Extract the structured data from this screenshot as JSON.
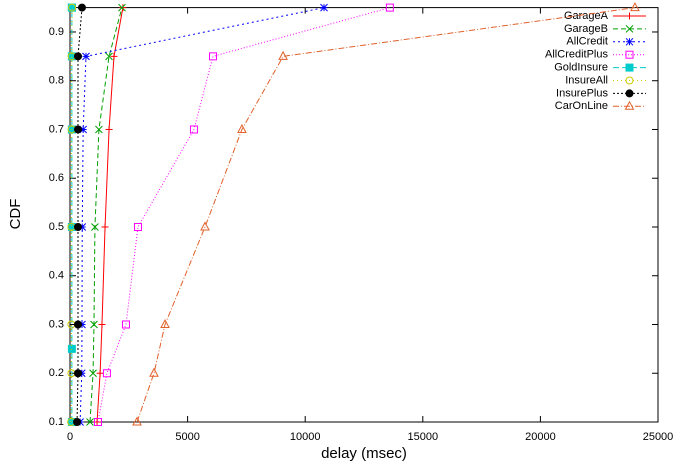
{
  "chart_data": {
    "type": "line",
    "xlabel": "delay (msec)",
    "ylabel": "CDF",
    "xlim": [
      0,
      25000
    ],
    "ylim": [
      0.1,
      0.95
    ],
    "xticks": [
      0,
      5000,
      10000,
      15000,
      20000,
      25000
    ],
    "yticks": [
      0.1,
      0.2,
      0.3,
      0.4,
      0.5,
      0.6,
      0.7,
      0.8,
      0.9
    ],
    "legend": "top-right",
    "series": [
      {
        "name": "GarageA",
        "color": "#ff0000",
        "marker": "plus",
        "dash": "none",
        "x": [
          1150,
          1280,
          1360,
          1490,
          1660,
          1870,
          2250
        ],
        "values": [
          0.1,
          0.2,
          0.3,
          0.5,
          0.7,
          0.85,
          0.95
        ]
      },
      {
        "name": "GarageB",
        "color": "#00a000",
        "marker": "cross",
        "dash": "5,3",
        "x": [
          850,
          980,
          1020,
          1060,
          1230,
          1660,
          2210
        ],
        "values": [
          0.1,
          0.2,
          0.3,
          0.5,
          0.7,
          0.85,
          0.95
        ]
      },
      {
        "name": "AllCredit",
        "color": "#0000ff",
        "marker": "star",
        "dash": "2,3",
        "x": [
          430,
          500,
          510,
          520,
          560,
          680,
          10800
        ],
        "values": [
          0.1,
          0.2,
          0.3,
          0.5,
          0.7,
          0.85,
          0.95
        ]
      },
      {
        "name": "AllCreditPlus",
        "color": "#ff00ff",
        "marker": "square",
        "dash": "1,2",
        "x": [
          1190,
          1570,
          2380,
          2890,
          5270,
          6080,
          13600
        ],
        "values": [
          0.1,
          0.2,
          0.3,
          0.5,
          0.7,
          0.85,
          0.95
        ]
      },
      {
        "name": "GoldInsure",
        "color": "#00cccc",
        "marker": "filled-square",
        "dash": "6,3",
        "x": [
          80,
          80,
          80,
          80,
          80,
          80,
          80
        ],
        "values": [
          0.1,
          0.25,
          0.5,
          0.7,
          0.85,
          0.95,
          0.95
        ]
      },
      {
        "name": "InsureAll",
        "color": "#cccc00",
        "marker": "circle",
        "dash": "1,3",
        "x": [
          50,
          60,
          60,
          60,
          70,
          70,
          90
        ],
        "values": [
          0.1,
          0.2,
          0.3,
          0.5,
          0.7,
          0.85,
          0.95
        ]
      },
      {
        "name": "InsurePlus",
        "color": "#000000",
        "marker": "filled-circle",
        "dash": "2,2",
        "x": [
          300,
          340,
          340,
          340,
          340,
          340,
          510
        ],
        "values": [
          0.1,
          0.2,
          0.3,
          0.5,
          0.7,
          0.85,
          0.95
        ]
      },
      {
        "name": "CarOnLine",
        "color": "#e0602a",
        "marker": "triangle",
        "dash": "6,2,1,2",
        "x": [
          2850,
          3570,
          4040,
          5740,
          7310,
          9060,
          24020
        ],
        "values": [
          0.1,
          0.2,
          0.3,
          0.5,
          0.7,
          0.85,
          0.95
        ]
      }
    ]
  }
}
